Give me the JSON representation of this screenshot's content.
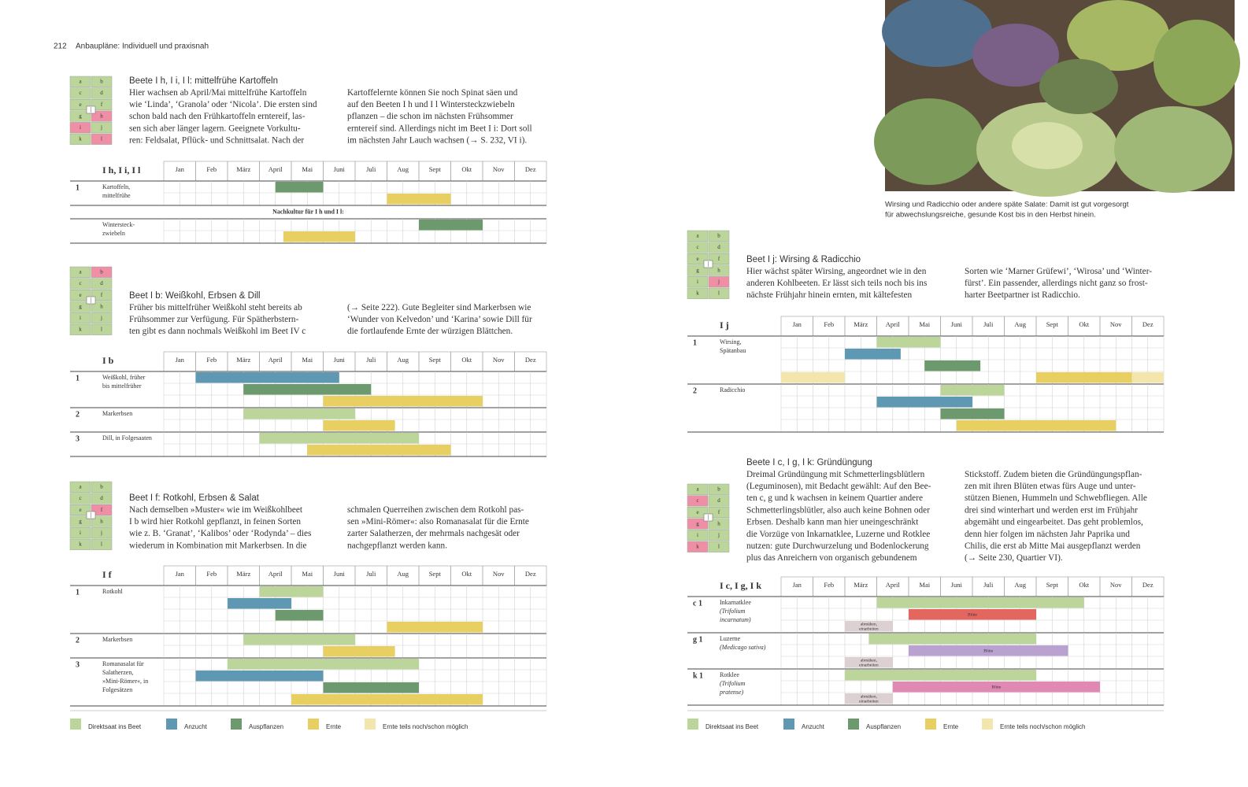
{
  "header": {
    "page_number": "212",
    "running_title": "Anbaupläne: Individuell und praxisnah"
  },
  "photo": {
    "caption": [
      "Wirsing und Radicchio oder andere späte Salate: Damit ist gut vorgesorgt",
      "für abwechslungsreiche, gesunde Kost bis in den Herbst hinein."
    ]
  },
  "months": [
    "Jan",
    "Feb",
    "März",
    "April",
    "Mai",
    "Juni",
    "Juli",
    "Aug",
    "Sept",
    "Okt",
    "Nov",
    "Dez"
  ],
  "legend": {
    "items": [
      {
        "label": "Direktsaat ins Beet",
        "color": "#bcd59b"
      },
      {
        "label": "Anzucht",
        "color": "#5f98b3"
      },
      {
        "label": "Auspflanzen",
        "color": "#6c9a6e"
      },
      {
        "label": "Ernte",
        "color": "#e8cf62"
      },
      {
        "label": "Ernte teils noch/schon möglich",
        "color": "#f3e6ac"
      }
    ]
  },
  "bed_letters": [
    "a",
    "b",
    "c",
    "d",
    "e",
    "f",
    "g",
    "h",
    "i",
    "j",
    "k",
    "l"
  ],
  "sections": [
    {
      "title": "Beete I h, I i, I l: mittelfrühe Kartoffeln",
      "bed_highlight": [
        7,
        8,
        11
      ],
      "text": [
        [
          "Hier wachsen ab April/Mai mittelfrühe Kartoffeln",
          "wie ‘Linda’, ‘Granola’ oder ‘Nicola’. Die ersten sind",
          "schon bald nach den Frühkartoffeln erntereif, las-",
          "sen sich aber länger lagern. Geeignete Vorkultu-",
          "ren: Feldsalat, Pflück- und Schnittsalat. Nach der"
        ],
        [
          "Kartoffelernte können Sie noch Spinat säen und",
          "auf den Beeten I h und I l Wintersteckzwiebeln",
          "pflanzen – die schon im nächsten Frühsommer",
          "erntereif sind. Allerdings nicht im Beet I i: Dort soll",
          "im nächsten Jahr Lauch wachsen (→ S. 232, VI i)."
        ]
      ],
      "table": {
        "label": "I h, I i, I l",
        "rows": [
          {
            "number": "1",
            "name": [
              "Kartoffeln,",
              "mittelfrühe"
            ],
            "lanes": [
              [
                {
                  "from": 3.5,
                  "to": 5,
                  "kind": 2
                }
              ],
              [
                {
                  "from": 7,
                  "to": 9,
                  "kind": 3
                }
              ]
            ]
          },
          {
            "note": "Nachkultur für I h und I l:"
          },
          {
            "name": [
              "Wintersteck-",
              "zwiebeln"
            ],
            "lanes": [
              [
                {
                  "from": 8,
                  "to": 10,
                  "kind": 2
                }
              ],
              [
                {
                  "from": 3.75,
                  "to": 6,
                  "kind": 3
                }
              ]
            ]
          }
        ]
      }
    },
    {
      "title": "Beet I b: Weißkohl, Erbsen & Dill",
      "bed_highlight": [
        1
      ],
      "text": [
        [
          "Früher bis mittelfrüher Weißkohl steht bereits ab",
          "Frühsommer zur Verfügung. Für Spätherbstern-",
          "ten gibt es dann nochmals Weißkohl im Beet IV c"
        ],
        [
          "(→ Seite 222). Gute Begleiter sind Markerbsen wie",
          "‘Wunder von Kelvedon’ und ‘Karina’ sowie Dill für",
          "die fortlaufende Ernte der würzigen Blättchen."
        ]
      ],
      "table": {
        "label": "I b",
        "rows": [
          {
            "number": "1",
            "name": [
              "Weißkohl, früher",
              "bis mittelfrüher"
            ],
            "lanes": [
              [
                {
                  "from": 1,
                  "to": 5.5,
                  "kind": 1
                }
              ],
              [
                {
                  "from": 2.5,
                  "to": 6.5,
                  "kind": 2
                }
              ],
              [
                {
                  "from": 5,
                  "to": 10,
                  "kind": 3
                }
              ]
            ]
          },
          {
            "number": "2",
            "name": [
              "Markerbsen"
            ],
            "lanes": [
              [
                {
                  "from": 2.5,
                  "to": 6,
                  "kind": 0
                }
              ],
              [
                {
                  "from": 5,
                  "to": 7.25,
                  "kind": 3
                }
              ]
            ]
          },
          {
            "number": "3",
            "name": [
              "Dill, in Folgesaaten"
            ],
            "lanes": [
              [
                {
                  "from": 3,
                  "to": 8,
                  "kind": 0
                }
              ],
              [
                {
                  "from": 4.5,
                  "to": 9,
                  "kind": 3
                }
              ]
            ]
          }
        ]
      }
    },
    {
      "title": "Beet I f: Rotkohl, Erbsen & Salat",
      "bed_highlight": [
        5
      ],
      "text": [
        [
          "Nach demselben »Muster« wie im Weißkohlbeet",
          "I b wird hier Rotkohl gepflanzt, in feinen Sorten",
          "wie z. B. ‘Granat’, ‘Kalibos’ oder ‘Rodynda’ – dies",
          "wiederum in Kombination mit Markerbsen. In die"
        ],
        [
          "schmalen Querreihen zwischen dem Rotkohl pas-",
          "sen »Mini-Römer«: also Romanasalat für die Ernte",
          "zarter Salatherzen, der mehrmals nachgesät oder",
          "nachgepflanzt werden kann."
        ]
      ],
      "table": {
        "label": "I f",
        "rows": [
          {
            "number": "1",
            "name": [
              "Rotkohl"
            ],
            "lanes": [
              [
                {
                  "from": 3,
                  "to": 5,
                  "kind": 0
                }
              ],
              [
                {
                  "from": 2,
                  "to": 4,
                  "kind": 1
                }
              ],
              [
                {
                  "from": 3.5,
                  "to": 5,
                  "kind": 2
                }
              ],
              [
                {
                  "from": 7,
                  "to": 10,
                  "kind": 3
                }
              ]
            ]
          },
          {
            "number": "2",
            "name": [
              "Markerbsen"
            ],
            "lanes": [
              [
                {
                  "from": 2.5,
                  "to": 6,
                  "kind": 0
                }
              ],
              [
                {
                  "from": 5,
                  "to": 7.25,
                  "kind": 3
                }
              ]
            ]
          },
          {
            "number": "3",
            "name": [
              "Romanasalat für",
              "Salatherzen,",
              "»Mini-Römer«, in",
              "Folgesätzen"
            ],
            "lanes": [
              [
                {
                  "from": 2,
                  "to": 8,
                  "kind": 0
                }
              ],
              [
                {
                  "from": 1,
                  "to": 5,
                  "kind": 1
                }
              ],
              [
                {
                  "from": 5,
                  "to": 8,
                  "kind": 2
                }
              ],
              [
                {
                  "from": 4,
                  "to": 10,
                  "kind": 3
                }
              ]
            ]
          }
        ]
      }
    },
    {
      "title": "Beet I j: Wirsing & Radicchio",
      "bed_highlight": [
        9
      ],
      "text": [
        [
          "Hier wächst später Wirsing, angeordnet wie in den",
          "anderen Kohlbeeten. Er lässt sich teils noch bis ins",
          "nächste Frühjahr hinein ernten, mit kältefesten"
        ],
        [
          "Sorten wie ‘Marner Grüfewi’, ‘Wirosa’ und ‘Winter-",
          "fürst’. Ein passender, allerdings nicht ganz so frost-",
          "harter Beetpartner ist Radicchio."
        ]
      ],
      "table": {
        "label": "I j",
        "rows": [
          {
            "number": "1",
            "name": [
              "Wirsing,",
              "Spätanbau"
            ],
            "lanes": [
              [
                {
                  "from": 3,
                  "to": 5,
                  "kind": 0
                }
              ],
              [
                {
                  "from": 2,
                  "to": 3.75,
                  "kind": 1
                }
              ],
              [
                {
                  "from": 4.5,
                  "to": 6.25,
                  "kind": 2
                }
              ],
              [
                {
                  "from": 0,
                  "to": 2,
                  "kind": 4
                },
                {
                  "from": 8,
                  "to": 11,
                  "kind": 3
                },
                {
                  "from": 11,
                  "to": 12,
                  "kind": 4
                }
              ]
            ]
          },
          {
            "number": "2",
            "name": [
              "Radicchio"
            ],
            "lanes": [
              [
                {
                  "from": 5,
                  "to": 7,
                  "kind": 0
                }
              ],
              [
                {
                  "from": 3,
                  "to": 6,
                  "kind": 1
                }
              ],
              [
                {
                  "from": 5,
                  "to": 7,
                  "kind": 2
                }
              ],
              [
                {
                  "from": 5.5,
                  "to": 10.5,
                  "kind": 3
                }
              ]
            ]
          }
        ]
      }
    },
    {
      "title": "Beete I c, I g, I k: Gründüngung",
      "bed_highlight": [
        2,
        6,
        10
      ],
      "text": [
        [
          "Dreimal Gründüngung mit Schmetterlingsblütlern",
          "(Leguminosen), mit Bedacht gewählt: Auf den Bee-",
          "ten c, g und k wachsen in keinem Quartier andere",
          "Schmetterlingsblütler, also auch keine Bohnen oder",
          "Erbsen. Deshalb kann man hier uneingeschränkt",
          "die Vorzüge von Inkarnatklee, Luzerne und Rotklee",
          "nutzen: gute Durchwurzelung und Bodenlockerung",
          "plus das Anreichern von organisch gebundenem"
        ],
        [
          "Stickstoff. Zudem bieten die Gründüngungspflan-",
          "zen mit ihren Blüten etwas fürs Auge und unter-",
          "stützen Bienen, Hummeln und Schwebfliegen. Alle",
          "drei sind winterhart und werden erst im Frühjahr",
          "abgemäht und eingearbeitet. Das geht problemlos,",
          "denn hier folgen im nächsten Jahr Paprika und",
          "Chilis, die erst ab Mitte Mai ausgepflanzt werden",
          "(→ Seite 230, Quartier VI)."
        ]
      ],
      "table": {
        "label": "I c, I g, I k",
        "rows": [
          {
            "number": "c 1",
            "name": [
              "Inkarnatklee"
            ],
            "latin": [
              "(Trifolium",
              "incarnatum)"
            ],
            "lanes": [
              [
                {
                  "from": 3,
                  "to": 9.5,
                  "kind": 0
                }
              ],
              [
                {
                  "from": 4,
                  "to": 8,
                  "color": "#e4675f",
                  "label": [
                    "Blüte"
                  ]
                }
              ],
              [
                {
                  "from": 2,
                  "to": 3.5,
                  "color": "#ddd0d3",
                  "label": [
                    "abmähen,",
                    "einarbeiten"
                  ]
                }
              ]
            ]
          },
          {
            "number": "g 1",
            "name": [
              "Luzerne"
            ],
            "latin": [
              "(Medicago sativa)"
            ],
            "lanes": [
              [
                {
                  "from": 2.75,
                  "to": 8,
                  "kind": 0
                }
              ],
              [
                {
                  "from": 4,
                  "to": 9,
                  "color": "#b9a2d0",
                  "label": [
                    "Blüte"
                  ]
                }
              ],
              [
                {
                  "from": 2,
                  "to": 3.5,
                  "color": "#ddd0d3",
                  "label": [
                    "abmähen,",
                    "einarbeiten"
                  ]
                }
              ]
            ]
          },
          {
            "number": "k 1",
            "name": [
              "Rotklee"
            ],
            "latin": [
              "(Trifolium",
              "pratense)"
            ],
            "lanes": [
              [
                {
                  "from": 2,
                  "to": 8,
                  "kind": 0
                }
              ],
              [
                {
                  "from": 3.5,
                  "to": 10,
                  "color": "#e08ab3",
                  "label": [
                    "Blüte"
                  ]
                }
              ],
              [
                {
                  "from": 2,
                  "to": 3.5,
                  "color": "#ddd0d3",
                  "label": [
                    "abmähen,",
                    "einarbeiten"
                  ]
                }
              ]
            ]
          }
        ]
      }
    }
  ]
}
